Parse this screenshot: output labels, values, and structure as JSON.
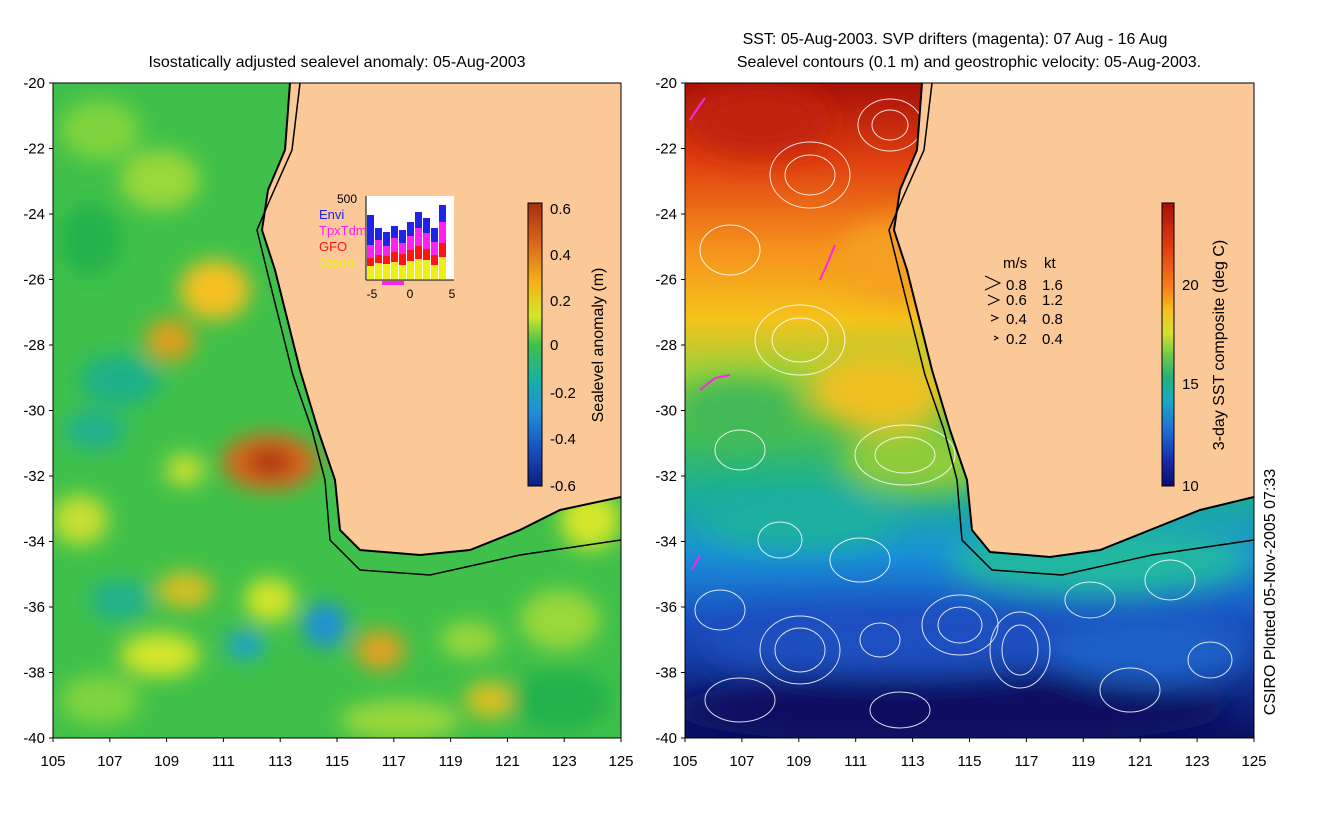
{
  "left_panel": {
    "title": "Isostatically adjusted sealevel anomaly: 05-Aug-2003",
    "colorbar": {
      "label": "Sealevel anomaly (m)",
      "ticks": [
        "0.6",
        "0.4",
        "0.2",
        "0",
        "-0.2",
        "-0.4",
        "-0.6"
      ],
      "colors": [
        "#a3300e",
        "#d9661c",
        "#f5b117",
        "#d4e62b",
        "#7fd43e",
        "#22b14c",
        "#1bb0a0",
        "#1f8fd8",
        "#1a4fc0",
        "#0c1f80"
      ]
    },
    "inset": {
      "ymax_label": "500",
      "legend": [
        {
          "label": "Envi",
          "color": "#1f22e8"
        },
        {
          "label": "TpxTdm",
          "color": "#ff22ee"
        },
        {
          "label": "GFO",
          "color": "#ff1414"
        },
        {
          "label": "Jason",
          "color": "#f0f010"
        }
      ],
      "x_ticks": [
        "-5",
        "0",
        "5"
      ]
    }
  },
  "right_panel": {
    "title_line1": "SST: 05-Aug-2003. SVP drifters (magenta): 07 Aug - 16 Aug",
    "title_line2": "Sealevel contours (0.1 m) and geostrophic velocity: 05-Aug-2003.",
    "colorbar": {
      "label": "3-day SST composite (deg C)",
      "ticks": [
        "20",
        "15",
        "10"
      ],
      "colors": [
        "#a81008",
        "#e03a10",
        "#f5801a",
        "#f8c020",
        "#d4e030",
        "#6cc84a",
        "#22b07a",
        "#18a8c8",
        "#1e70d8",
        "#1830b0",
        "#0a0a70"
      ]
    },
    "velocity_legend": {
      "header_ms": "m/s",
      "header_kt": "kt",
      "rows": [
        {
          "ms": "0.8",
          "kt": "1.6"
        },
        {
          "ms": "0.6",
          "kt": "1.2"
        },
        {
          "ms": "0.4",
          "kt": "0.8"
        },
        {
          "ms": "0.2",
          "kt": "0.4"
        }
      ]
    }
  },
  "axes": {
    "lat_ticks": [
      "-20",
      "-22",
      "-24",
      "-26",
      "-28",
      "-30",
      "-32",
      "-34",
      "-36",
      "-38",
      "-40"
    ],
    "lon_ticks": [
      "105",
      "107",
      "109",
      "111",
      "113",
      "115",
      "117",
      "119",
      "121",
      "123",
      "125"
    ]
  },
  "credit": "CSIRO Plotted 05-Nov-2005 07:33",
  "colors": {
    "land": "#fbc898",
    "ocean_base": "#3fc04a"
  }
}
